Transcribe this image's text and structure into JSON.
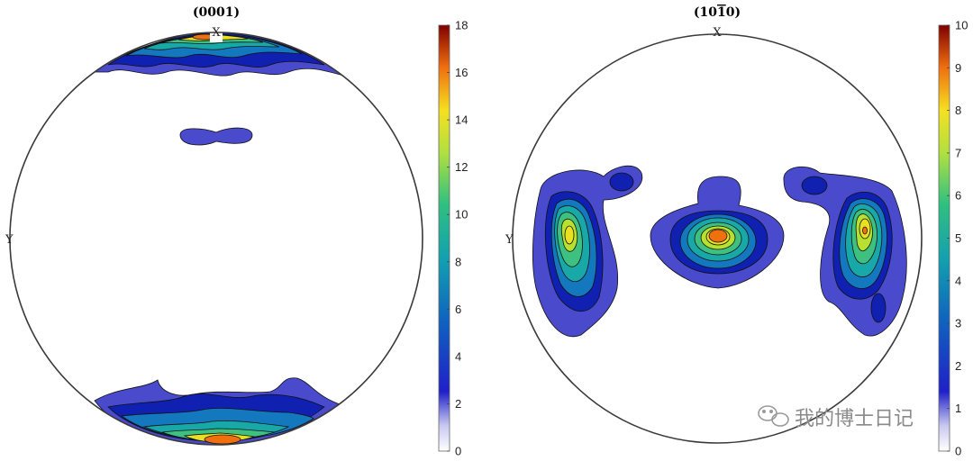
{
  "chart_data": [
    {
      "type": "heatmap",
      "subtype": "pole-figure-contour",
      "title": "(0001)",
      "axis_x_label": "X",
      "axis_y_label": "Y",
      "colorbar": {
        "min": 0,
        "max": 18,
        "ticks": [
          "0",
          "2",
          "4",
          "6",
          "8",
          "10",
          "12",
          "14",
          "16",
          "18"
        ]
      },
      "features": [
        {
          "name": "top-cap",
          "peak": 17
        },
        {
          "name": "bottom-cap",
          "peak": 17
        },
        {
          "name": "small-upper-blob",
          "peak": 2
        }
      ]
    },
    {
      "type": "heatmap",
      "subtype": "pole-figure-contour",
      "title": "(10-10)",
      "title_parts": {
        "a": "(10",
        "bar": "1",
        "b": "0)"
      },
      "axis_x_label": "X",
      "axis_y_label": "Y",
      "colorbar": {
        "min": 0,
        "max": 10,
        "ticks": [
          "0",
          "1",
          "2",
          "3",
          "4",
          "5",
          "6",
          "7",
          "8",
          "9",
          "10"
        ]
      },
      "features": [
        {
          "name": "left-lobe",
          "peak": 8
        },
        {
          "name": "center-lobe",
          "peak": 9
        },
        {
          "name": "right-lobe",
          "peak": 8.5
        },
        {
          "name": "left-small-blob",
          "peak": 2
        },
        {
          "name": "right-small-blob",
          "peak": 2
        }
      ]
    }
  ],
  "colors": {
    "low": "#4040cc",
    "mid": "#1a9fa8",
    "high": "#f0e030",
    "peak": "#e05010"
  },
  "watermark": {
    "icon": "wechat-icon",
    "text": "我的博士日记"
  }
}
